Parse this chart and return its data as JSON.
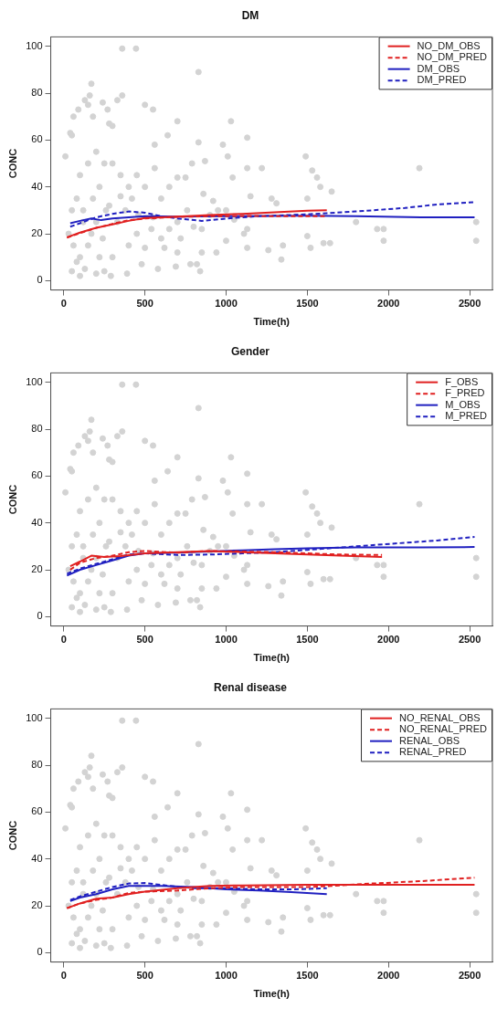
{
  "chart_data": [
    {
      "type": "scatter",
      "title": "DM",
      "xlabel": "Time(h)",
      "ylabel": "CONC",
      "xlim": [
        -80,
        2640
      ],
      "xticks": [
        0,
        500,
        1000,
        1500,
        2000,
        2500
      ],
      "ylim": [
        -4,
        104
      ],
      "yticks": [
        0,
        20,
        40,
        60,
        80,
        100
      ],
      "grid": false,
      "legend": "top right",
      "series": [
        {
          "type": "scatter",
          "color": "#d3d3d3",
          "marker": "circle",
          "x": [
            360,
            445,
            830,
            170,
            160,
            360,
            130,
            150,
            240,
            330,
            90,
            270,
            500,
            550,
            60,
            180,
            40,
            50,
            280,
            300,
            700,
            1030,
            640,
            1130,
            830,
            980,
            560,
            10,
            1490,
            1010,
            1220,
            1130,
            2190,
            1530,
            1560,
            1040,
            870,
            790,
            750,
            1150,
            1650,
            1580,
            1500,
            1280,
            1310,
            920,
            1000,
            1800,
            1930,
            1970,
            1970,
            2540,
            2540,
            1640,
            1600,
            1500,
            1520,
            1350,
            1340,
            1260,
            1130,
            1130,
            1110,
            1000,
            940,
            850,
            840,
            780,
            820,
            700,
            690,
            580,
            480,
            390,
            290,
            100,
            50,
            130,
            200,
            250,
            220,
            100,
            300,
            60,
            150,
            400,
            450,
            500,
            600,
            650,
            700,
            760,
            850,
            900,
            950,
            1050,
            550,
            600,
            650,
            500,
            450,
            400,
            350,
            300,
            250,
            200,
            150,
            100,
            80,
            50,
            30,
            120,
            180,
            220,
            260,
            330,
            380,
            420,
            170,
            120,
            80,
            200,
            240,
            280,
            350,
            460,
            540,
            620,
            720,
            860,
            800,
            560,
            700
          ],
          "values": [
            99,
            99,
            89,
            84,
            79,
            79,
            77,
            75,
            76,
            77,
            73,
            73,
            75,
            73,
            70,
            70,
            63,
            62,
            67,
            66,
            68,
            68,
            62,
            61,
            59,
            58,
            58,
            53,
            53,
            53,
            48,
            48,
            48,
            47,
            44,
            44,
            51,
            50,
            44,
            36,
            38,
            40,
            35,
            35,
            33,
            34,
            30,
            25,
            22,
            22,
            17,
            25,
            17,
            16,
            16,
            19,
            14,
            15,
            9,
            13,
            14,
            22,
            20,
            17,
            12,
            12,
            4,
            7,
            7,
            12,
            6,
            5,
            7,
            3,
            2,
            2,
            4,
            5,
            3,
            4,
            10,
            10,
            10,
            15,
            15,
            15,
            20,
            14,
            18,
            22,
            25,
            30,
            22,
            28,
            30,
            26,
            27,
            35,
            40,
            40,
            45,
            40,
            45,
            50,
            50,
            55,
            50,
            45,
            35,
            30,
            20,
            30,
            35,
            40,
            30,
            25,
            30,
            35,
            20,
            25,
            8,
            25,
            18,
            32,
            36,
            28,
            22,
            14,
            18,
            37,
            23,
            48,
            44
          ]
        },
        {
          "type": "line",
          "name": "NO_DM_OBS",
          "color": "#e02020",
          "line_style": "solid",
          "x": [
            20,
            100,
            200,
            300,
            400,
            500,
            700,
            900,
            1100,
            1300,
            1500,
            1620
          ],
          "values": [
            18.5,
            20.5,
            22.5,
            24,
            25.5,
            26.7,
            27.3,
            28,
            28.5,
            29.2,
            29.8,
            30
          ]
        },
        {
          "type": "line",
          "name": "NO_DM_PRED",
          "color": "#e02020",
          "line_style": "dashed",
          "x": [
            20,
            100,
            200,
            300,
            400,
            500,
            700,
            900,
            1100,
            1300,
            1500,
            1620
          ],
          "values": [
            18.3,
            20.3,
            22.5,
            24.2,
            25.8,
            26.5,
            27.2,
            27.5,
            27.6,
            27.5,
            27.5,
            27.5
          ]
        },
        {
          "type": "line",
          "name": "DM_OBS",
          "color": "#2020c0",
          "line_style": "solid",
          "x": [
            40,
            100,
            170,
            230,
            300,
            500,
            700,
            1000,
            1500,
            1800,
            2200,
            2530
          ],
          "values": [
            24.5,
            25.5,
            26.5,
            25.8,
            26.5,
            27.5,
            27.3,
            27.5,
            27.7,
            27.5,
            27,
            27
          ]
        },
        {
          "type": "line",
          "name": "DM_PRED",
          "color": "#2020c0",
          "line_style": "dashed",
          "x": [
            40,
            100,
            200,
            300,
            400,
            500,
            600,
            700,
            850,
            1000,
            1200,
            1500,
            1800,
            2100,
            2300,
            2530
          ],
          "values": [
            23,
            24.5,
            27,
            28.5,
            29.5,
            29,
            27.5,
            26.5,
            25.5,
            26.5,
            27.5,
            28.3,
            29.5,
            31,
            32.5,
            33.5
          ]
        }
      ]
    },
    {
      "type": "scatter",
      "title": "Gender",
      "xlabel": "Time(h)",
      "ylabel": "CONC",
      "xlim": [
        -80,
        2640
      ],
      "xticks": [
        0,
        500,
        1000,
        1500,
        2000,
        2500
      ],
      "ylim": [
        -4,
        104
      ],
      "yticks": [
        0,
        20,
        40,
        60,
        80,
        100
      ],
      "grid": false,
      "legend": "top right",
      "series": [
        {
          "type": "scatter",
          "color": "#d3d3d3",
          "marker": "circle",
          "x": [
            360,
            445,
            830,
            170,
            160,
            360,
            130,
            150,
            240,
            330,
            90,
            270,
            500,
            550,
            60,
            180,
            40,
            50,
            280,
            300,
            700,
            1030,
            640,
            1130,
            830,
            980,
            560,
            10,
            1490,
            1010,
            1220,
            1130,
            2190,
            1530,
            1560,
            1040,
            870,
            790,
            750,
            1150,
            1650,
            1580,
            1500,
            1280,
            1310,
            920,
            1000,
            1800,
            1930,
            1970,
            1970,
            2540,
            2540,
            1640,
            1600,
            1500,
            1520,
            1350,
            1340,
            1260,
            1130,
            1130,
            1110,
            1000,
            940,
            850,
            840,
            780,
            820,
            700,
            690,
            580,
            480,
            390,
            290,
            100,
            50,
            130,
            200,
            250,
            220,
            100,
            300,
            60,
            150,
            400,
            450,
            500,
            600,
            650,
            700,
            760,
            850,
            900,
            950,
            1050,
            550,
            600,
            650,
            500,
            450,
            400,
            350,
            300,
            250,
            200,
            150,
            100,
            80,
            50,
            30,
            120,
            180,
            220,
            260,
            330,
            380,
            420,
            170,
            120,
            80,
            200,
            240,
            280,
            350,
            460,
            540,
            620,
            720,
            860,
            800,
            560,
            700
          ],
          "values": [
            99,
            99,
            89,
            84,
            79,
            79,
            77,
            75,
            76,
            77,
            73,
            73,
            75,
            73,
            70,
            70,
            63,
            62,
            67,
            66,
            68,
            68,
            62,
            61,
            59,
            58,
            58,
            53,
            53,
            53,
            48,
            48,
            48,
            47,
            44,
            44,
            51,
            50,
            44,
            36,
            38,
            40,
            35,
            35,
            33,
            34,
            30,
            25,
            22,
            22,
            17,
            25,
            17,
            16,
            16,
            19,
            14,
            15,
            9,
            13,
            14,
            22,
            20,
            17,
            12,
            12,
            4,
            7,
            7,
            12,
            6,
            5,
            7,
            3,
            2,
            2,
            4,
            5,
            3,
            4,
            10,
            10,
            10,
            15,
            15,
            15,
            20,
            14,
            18,
            22,
            25,
            30,
            22,
            28,
            30,
            26,
            27,
            35,
            40,
            40,
            45,
            40,
            45,
            50,
            50,
            55,
            50,
            45,
            35,
            30,
            20,
            30,
            35,
            40,
            30,
            25,
            30,
            35,
            20,
            25,
            8,
            25,
            18,
            32,
            36,
            28,
            22,
            14,
            18,
            37,
            23,
            48,
            44
          ]
        },
        {
          "type": "line",
          "name": "F_OBS",
          "color": "#e02020",
          "line_style": "solid",
          "x": [
            40,
            100,
            170,
            250,
            350,
            500,
            700,
            900,
            1100,
            1300,
            1500,
            1700,
            1960
          ],
          "values": [
            21.5,
            23.5,
            26,
            25.5,
            25.8,
            27,
            27.5,
            28,
            27.5,
            27,
            26.5,
            26,
            25.5
          ]
        },
        {
          "type": "line",
          "name": "F_PRED",
          "color": "#e02020",
          "line_style": "dashed",
          "x": [
            40,
            100,
            200,
            300,
            400,
            500,
            700,
            900,
            1100,
            1300,
            1500,
            1700,
            1960
          ],
          "values": [
            20,
            23,
            25,
            26,
            27.5,
            28,
            27.3,
            28,
            27.8,
            27.5,
            27,
            26.5,
            26.3
          ]
        },
        {
          "type": "line",
          "name": "M_OBS",
          "color": "#2020c0",
          "line_style": "solid",
          "x": [
            20,
            100,
            200,
            300,
            400,
            500,
            700,
            900,
            1100,
            1300,
            1500,
            1800,
            2200,
            2530
          ],
          "values": [
            17.5,
            20,
            22,
            24,
            26,
            27,
            27.3,
            27.8,
            28.3,
            28.8,
            29.2,
            29.5,
            29.5,
            29.7
          ]
        },
        {
          "type": "line",
          "name": "M_PRED",
          "color": "#2020c0",
          "line_style": "dashed",
          "x": [
            20,
            100,
            200,
            300,
            400,
            500,
            700,
            900,
            1100,
            1300,
            1500,
            1800,
            2100,
            2300,
            2530
          ],
          "values": [
            18.3,
            20.5,
            22.5,
            24.5,
            26.5,
            27,
            26.3,
            26.5,
            27,
            27.5,
            28.5,
            30,
            31.5,
            32.5,
            34
          ]
        }
      ]
    },
    {
      "type": "scatter",
      "title": "Renal disease",
      "xlabel": "Time(h)",
      "ylabel": "CONC",
      "xlim": [
        -80,
        2640
      ],
      "xticks": [
        0,
        500,
        1000,
        1500,
        2000,
        2500
      ],
      "ylim": [
        -4,
        104
      ],
      "yticks": [
        0,
        20,
        40,
        60,
        80,
        100
      ],
      "grid": false,
      "legend": "top right",
      "series": [
        {
          "type": "scatter",
          "color": "#d3d3d3",
          "marker": "circle",
          "x": [
            360,
            445,
            830,
            170,
            160,
            360,
            130,
            150,
            240,
            330,
            90,
            270,
            500,
            550,
            60,
            180,
            40,
            50,
            280,
            300,
            700,
            1030,
            640,
            1130,
            830,
            980,
            560,
            10,
            1490,
            1010,
            1220,
            1130,
            2190,
            1530,
            1560,
            1040,
            870,
            790,
            750,
            1150,
            1650,
            1580,
            1500,
            1280,
            1310,
            920,
            1000,
            1800,
            1930,
            1970,
            1970,
            2540,
            2540,
            1640,
            1600,
            1500,
            1520,
            1350,
            1340,
            1260,
            1130,
            1130,
            1110,
            1000,
            940,
            850,
            840,
            780,
            820,
            700,
            690,
            580,
            480,
            390,
            290,
            100,
            50,
            130,
            200,
            250,
            220,
            100,
            300,
            60,
            150,
            400,
            450,
            500,
            600,
            650,
            700,
            760,
            850,
            900,
            950,
            1050,
            550,
            600,
            650,
            500,
            450,
            400,
            350,
            300,
            250,
            200,
            150,
            100,
            80,
            50,
            30,
            120,
            180,
            220,
            260,
            330,
            380,
            420,
            170,
            120,
            80,
            200,
            240,
            280,
            350,
            460,
            540,
            620,
            720,
            860,
            800,
            560,
            700
          ],
          "values": [
            99,
            99,
            89,
            84,
            79,
            79,
            77,
            75,
            76,
            77,
            73,
            73,
            75,
            73,
            70,
            70,
            63,
            62,
            67,
            66,
            68,
            68,
            62,
            61,
            59,
            58,
            58,
            53,
            53,
            53,
            48,
            48,
            48,
            47,
            44,
            44,
            51,
            50,
            44,
            36,
            38,
            40,
            35,
            35,
            33,
            34,
            30,
            25,
            22,
            22,
            17,
            25,
            17,
            16,
            16,
            19,
            14,
            15,
            9,
            13,
            14,
            22,
            20,
            17,
            12,
            12,
            4,
            7,
            7,
            12,
            6,
            5,
            7,
            3,
            2,
            2,
            4,
            5,
            3,
            4,
            10,
            10,
            10,
            15,
            15,
            15,
            20,
            14,
            18,
            22,
            25,
            30,
            22,
            28,
            30,
            26,
            27,
            35,
            40,
            40,
            45,
            40,
            45,
            50,
            50,
            55,
            50,
            45,
            35,
            30,
            20,
            30,
            35,
            40,
            30,
            25,
            30,
            35,
            20,
            25,
            8,
            25,
            18,
            32,
            36,
            28,
            22,
            14,
            18,
            37,
            23,
            48,
            44
          ]
        },
        {
          "type": "line",
          "name": "NO_RENAL_OBS",
          "color": "#e02020",
          "line_style": "solid",
          "x": [
            20,
            100,
            200,
            300,
            400,
            500,
            700,
            900,
            1100,
            1500,
            2000,
            2530
          ],
          "values": [
            19,
            21,
            23,
            23.5,
            25,
            26,
            27.5,
            28.5,
            28.7,
            29,
            29,
            29
          ]
        },
        {
          "type": "line",
          "name": "NO_RENAL_PRED",
          "color": "#e02020",
          "line_style": "dashed",
          "x": [
            20,
            100,
            200,
            300,
            400,
            500,
            700,
            900,
            1100,
            1300,
            1500,
            1650,
            1900,
            2200,
            2530
          ],
          "values": [
            19,
            21,
            22.5,
            23.5,
            25.5,
            26,
            26.5,
            27.5,
            28,
            28,
            28,
            28.5,
            29.5,
            30.5,
            32
          ]
        },
        {
          "type": "line",
          "name": "RENAL_OBS",
          "color": "#2020c0",
          "line_style": "solid",
          "x": [
            40,
            100,
            200,
            300,
            400,
            600,
            800,
            1000,
            1200,
            1400,
            1620
          ],
          "values": [
            22,
            23.5,
            25,
            27,
            28.5,
            28.5,
            28,
            27,
            26.5,
            25.8,
            25
          ]
        },
        {
          "type": "line",
          "name": "RENAL_PRED",
          "color": "#2020c0",
          "line_style": "dashed",
          "x": [
            40,
            100,
            200,
            300,
            400,
            500,
            650,
            800,
            1000,
            1200,
            1400,
            1620
          ],
          "values": [
            22.5,
            24,
            26,
            28,
            29.5,
            29.7,
            28.5,
            27.5,
            27.5,
            27,
            27,
            27.5
          ]
        }
      ]
    }
  ]
}
